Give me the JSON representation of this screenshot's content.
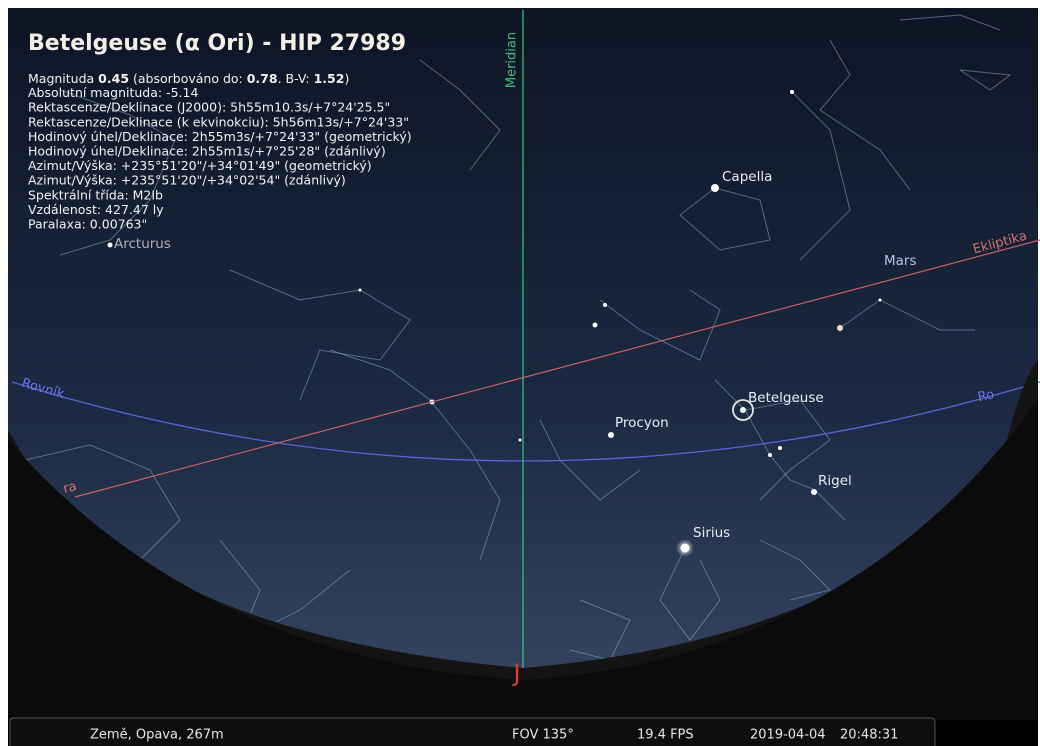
{
  "info": {
    "title": "Betelgeuse (α Ori) - HIP 27989",
    "magnitude_line": [
      "Magnituda ",
      "0.45",
      " (absorbováno do: ",
      "0.78",
      ". B-V: ",
      "1.52",
      ")"
    ],
    "lines": [
      "Absolutní magnituda: -5.14",
      "Rektascenze/Deklinace (J2000): 5h55m10.3s/+7°24'25.5\"",
      "Rektascenze/Deklinace (k ekvinokciu): 5h56m13s/+7°24'33\"",
      "Hodinový úhel/Deklinace: 2h55m3s/+7°24'33\" (geometrický)",
      "Hodinový úhel/Deklinace: 2h55m1s/+7°25'28\" (zdánlivý)",
      "Azimut/Výška: +235°51'20\"/+34°01'49\" (geometrický)",
      "Azimut/Výška: +235°51'20\"/+34°02'54\" (zdánlivý)",
      "Spektrální třída: M2Ib",
      "Vzdálenost: 427.47 ly",
      "Paralaxa: 0.00763\""
    ]
  },
  "sky": {
    "meridian": "Meridian",
    "ecliptic": "Ekliptika",
    "ecliptic_left": "ra",
    "equator_left": "Rovník",
    "equator_right": "Ro",
    "cardinal": "J",
    "stars": [
      "Capella",
      "Betelgeuse",
      "Procyon",
      "Rigel",
      "Sirius",
      "Arcturus"
    ],
    "planets": [
      "Mars"
    ]
  },
  "status": {
    "location": "Země, Opava, 267m",
    "fov": "FOV 135°",
    "fps": "19.4 FPS",
    "date": "2019-04-04",
    "time": "20:48:31"
  }
}
